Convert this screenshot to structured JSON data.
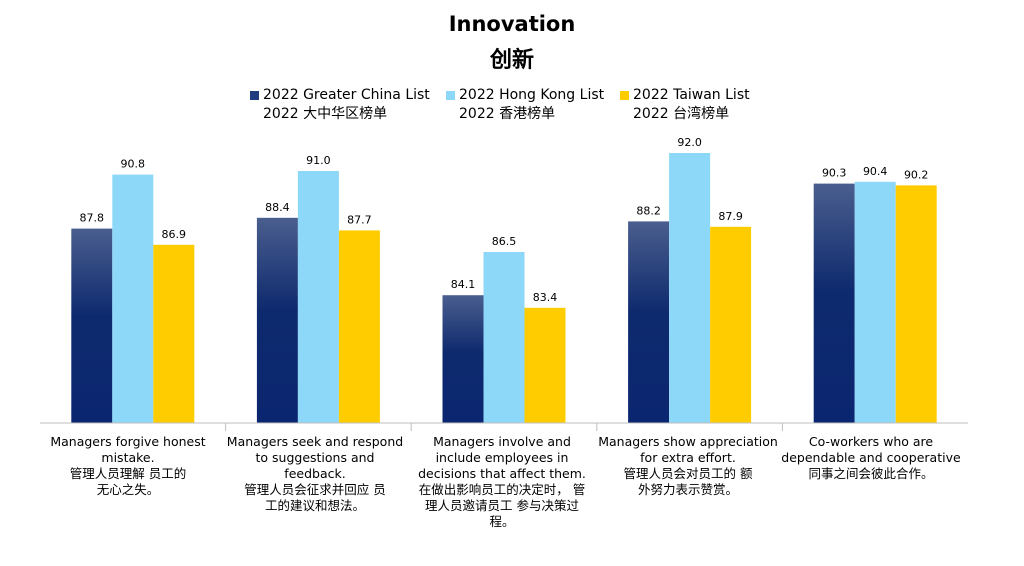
{
  "title_en": "Innovation",
  "title_zh": "创新",
  "colors": {
    "greater_china_top": "#3F5A8F",
    "greater_china_bottom": "#0A2670",
    "hong_kong": "#8DD8F8",
    "taiwan": "#FFCC00"
  },
  "legend": [
    {
      "line1": "2022 Greater China List",
      "line2": "2022 大中华区榜单",
      "swatch": "#1F3B80"
    },
    {
      "line1": "2022 Hong Kong List",
      "line2": "2022 香港榜单",
      "swatch": "#8DD8F8"
    },
    {
      "line1": "2022 Taiwan List",
      "line2": "2022 台湾榜单",
      "swatch": "#FFCC00"
    }
  ],
  "categories": [
    {
      "en": "Managers forgive honest mistake.",
      "zh": "管理人员理解 员工的无心之失。"
    },
    {
      "en": "Managers seek and respond to suggestions and feedback.",
      "zh": "管理人员会征求并回应 员工的建议和想法。"
    },
    {
      "en": "Managers involve and include employees in decisions that affect them.",
      "zh": "在做出影响员工的决定时， 管理人员邀请员工 参与决策过程。"
    },
    {
      "en": "Managers show appreciation for extra effort.",
      "zh": "管理人员会对员工的 额外努力表示赞赏。"
    },
    {
      "en": "Co-workers who are dependable and cooperative",
      "zh": "同事之间会彼此合作。"
    }
  ],
  "chart_data": {
    "type": "bar",
    "title": "Innovation 创新",
    "categories": [
      "Managers forgive honest mistake.",
      "Managers seek and respond to suggestions and feedback.",
      "Managers involve and include employees in decisions that affect them.",
      "Managers show appreciation for extra effort.",
      "Co-workers who are dependable and cooperative"
    ],
    "series": [
      {
        "name": "2022 Greater China List",
        "values": [
          87.8,
          88.4,
          84.1,
          88.2,
          90.3
        ]
      },
      {
        "name": "2022 Hong Kong List",
        "values": [
          90.8,
          91.0,
          86.5,
          92.0,
          90.4
        ]
      },
      {
        "name": "2022 Taiwan List",
        "values": [
          86.9,
          87.7,
          83.4,
          87.9,
          90.2
        ]
      }
    ],
    "data_labels": [
      [
        "87.8",
        "90.8",
        "86.9"
      ],
      [
        "88.4",
        "91.0",
        "87.7"
      ],
      [
        "84.1",
        "86.5",
        "83.4"
      ],
      [
        "88.2",
        "92.0",
        "87.9"
      ],
      [
        "90.3",
        "90.4",
        "90.2"
      ]
    ],
    "ylim": [
      77,
      93
    ],
    "grid": false,
    "legend_position": "top"
  }
}
